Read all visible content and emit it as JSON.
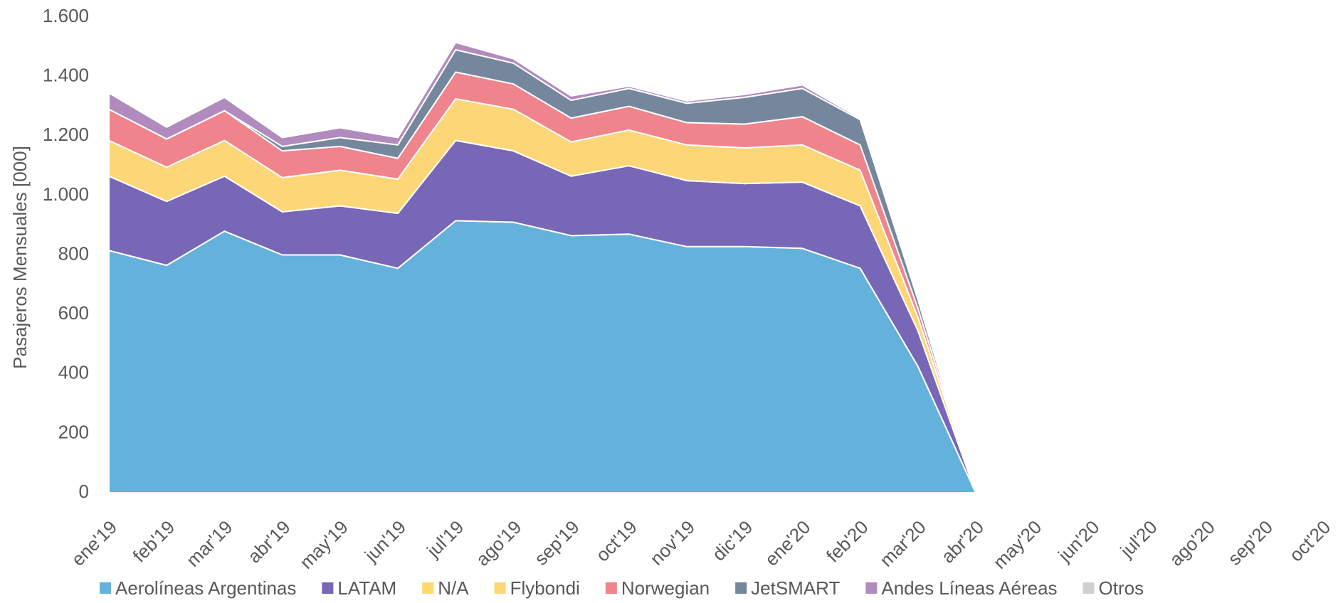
{
  "chart_data": {
    "type": "stacked_area",
    "y_label": "Pasajeros Mensuales [000]",
    "categories": [
      "ene'19",
      "feb'19",
      "mar'19",
      "abr'19",
      "may'19",
      "jun'19",
      "jul'19",
      "ago'19",
      "sep'19",
      "oct'19",
      "nov'19",
      "dic'19",
      "ene'20",
      "feb'20",
      "mar'20",
      "abr'20",
      "may'20",
      "jun'20",
      "jul'20",
      "ago'20",
      "sep'20",
      "oct'20"
    ],
    "series": [
      {
        "name": "Aerolíneas Argentinas",
        "color": "#64b2dc",
        "values": [
          815,
          765,
          880,
          800,
          800,
          755,
          915,
          910,
          865,
          870,
          828,
          828,
          822,
          755,
          425,
          0,
          null,
          null,
          null,
          null,
          null,
          null
        ]
      },
      {
        "name": "LATAM",
        "color": "#7866b6",
        "values": [
          250,
          215,
          185,
          145,
          165,
          185,
          270,
          240,
          200,
          230,
          222,
          212,
          223,
          210,
          120,
          0,
          null,
          null,
          null,
          null,
          null,
          null
        ]
      },
      {
        "name": "N/A",
        "color": "#ffd96e",
        "values": [
          0,
          0,
          0,
          0,
          0,
          0,
          0,
          0,
          0,
          0,
          0,
          0,
          0,
          0,
          0,
          0,
          null,
          null,
          null,
          null,
          null,
          null
        ]
      },
      {
        "name": "Flybondi",
        "color": "#fdd777",
        "values": [
          120,
          115,
          120,
          115,
          120,
          115,
          140,
          140,
          115,
          120,
          120,
          120,
          125,
          120,
          45,
          0,
          null,
          null,
          null,
          null,
          null,
          null
        ]
      },
      {
        "name": "Norwegian",
        "color": "#f0848c",
        "values": [
          105,
          95,
          100,
          90,
          80,
          70,
          90,
          85,
          80,
          80,
          75,
          80,
          95,
          85,
          30,
          0,
          null,
          null,
          null,
          null,
          null,
          null
        ]
      },
      {
        "name": "JetSMART",
        "color": "#74879c",
        "values": [
          0,
          0,
          0,
          15,
          30,
          45,
          75,
          70,
          60,
          60,
          65,
          90,
          95,
          85,
          30,
          0,
          null,
          null,
          null,
          null,
          null,
          null
        ]
      },
      {
        "name": "Andes Líneas Aéreas",
        "color": "#b18bbd",
        "values": [
          55,
          40,
          45,
          30,
          33,
          25,
          25,
          15,
          15,
          8,
          8,
          10,
          12,
          5,
          2,
          0,
          null,
          null,
          null,
          null,
          null,
          null
        ]
      },
      {
        "name": "Otros",
        "color": "#d0d0d0",
        "values": [
          0,
          0,
          0,
          0,
          0,
          0,
          0,
          0,
          0,
          0,
          0,
          0,
          0,
          0,
          0,
          0,
          null,
          null,
          null,
          null,
          null,
          null
        ]
      }
    ],
    "ylim": [
      0,
      1600
    ],
    "yticks": [
      0,
      200,
      400,
      600,
      800,
      {
        "value": 1000,
        "label": "1.000"
      },
      {
        "value": 1200,
        "label": "1.200"
      },
      {
        "value": 1400,
        "label": "1.400"
      },
      {
        "value": 1600,
        "label": "1.600"
      }
    ],
    "grid": false,
    "legend": "bottom"
  }
}
